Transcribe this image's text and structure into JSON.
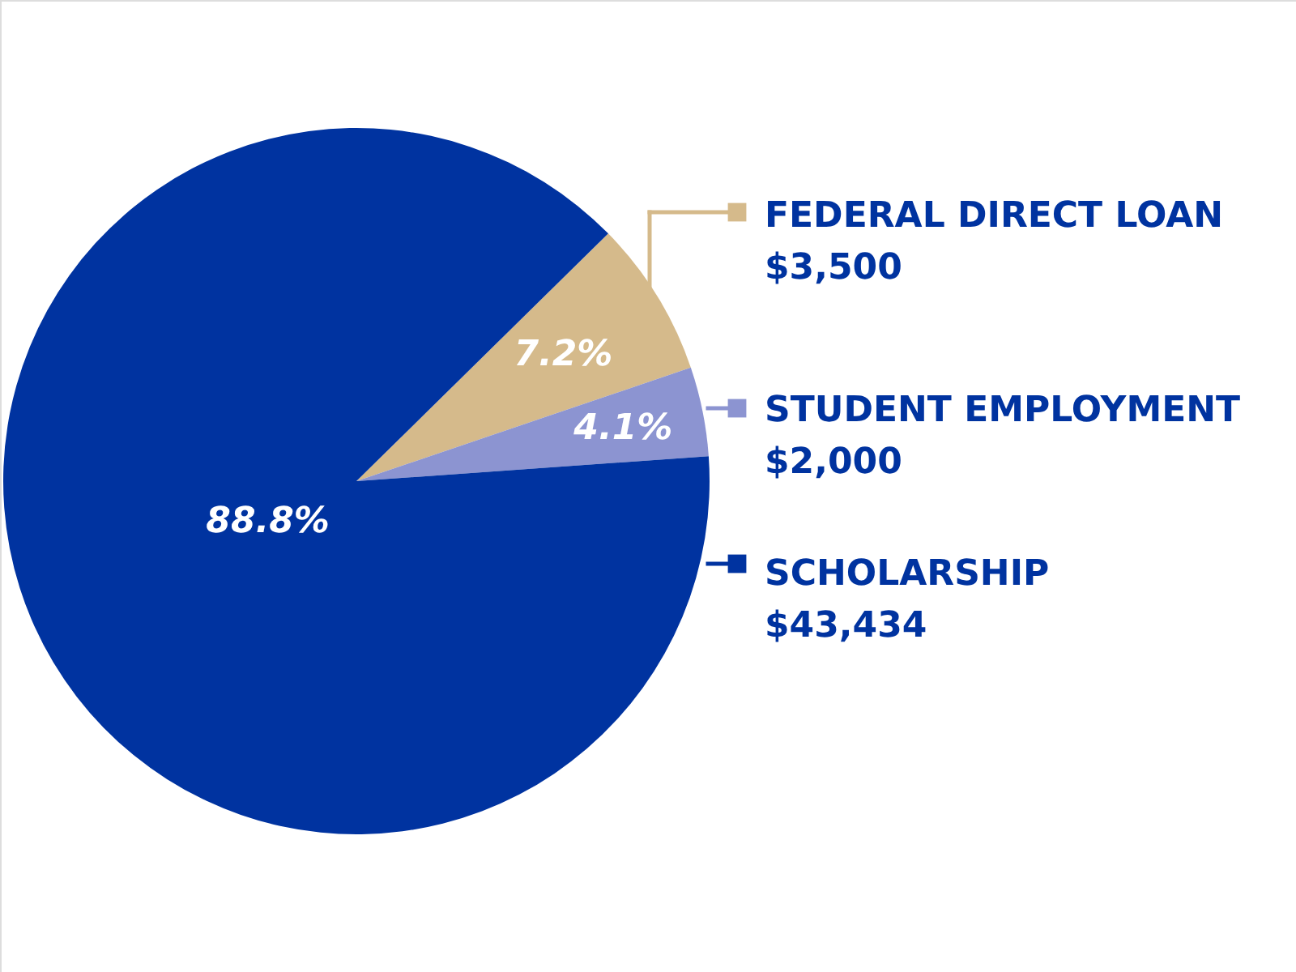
{
  "chart_data": {
    "type": "pie",
    "categories": [
      "FEDERAL DIRECT LOAN",
      "STUDENT EMPLOYMENT",
      "SCHOLARSHIP"
    ],
    "values": [
      3500,
      2000,
      43434
    ],
    "value_labels": [
      "$3,500",
      "$2,000",
      "$43,434"
    ],
    "colors": [
      "#d5ba8b",
      "#8c94d1",
      "#0033a0"
    ],
    "annotations": [
      "7.2%",
      "4.1%",
      "88.8%"
    ],
    "legend": "right"
  }
}
